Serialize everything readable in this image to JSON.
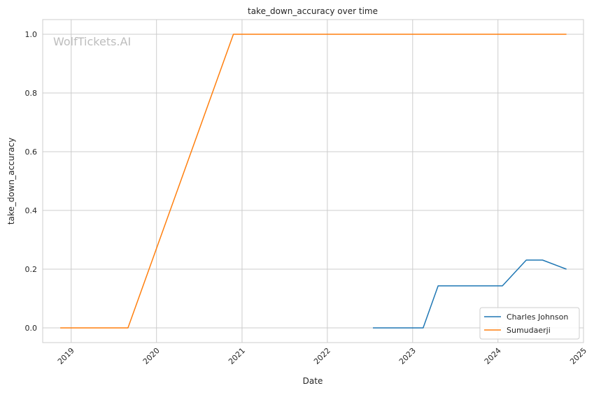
{
  "chart_data": {
    "type": "line",
    "title": "take_down_accuracy over time",
    "xlabel": "Date",
    "ylabel": "take_down_accuracy",
    "watermark": "WolfTickets.AI",
    "xlim": [
      "2018-09-01",
      "2025-01-01"
    ],
    "ylim": [
      -0.05,
      1.05
    ],
    "x_ticks": [
      "2019",
      "2020",
      "2021",
      "2022",
      "2023",
      "2024",
      "2025"
    ],
    "y_ticks": [
      "0.0",
      "0.2",
      "0.4",
      "0.6",
      "0.8",
      "1.0"
    ],
    "grid": true,
    "legend": "lower-right",
    "series": [
      {
        "name": "Charles Johnson",
        "color": "#1f77b4",
        "x": [
          "2022-07-15",
          "2023-02-15",
          "2023-04-20",
          "2024-01-20",
          "2024-05-01",
          "2024-07-10",
          "2024-10-20"
        ],
        "values": [
          0.0,
          0.0,
          0.143,
          0.143,
          0.231,
          0.231,
          0.2
        ]
      },
      {
        "name": "Sumudaerji",
        "color": "#ff7f0e",
        "x": [
          "2018-11-15",
          "2019-09-01",
          "2020-11-25",
          "2024-10-20"
        ],
        "values": [
          0.0,
          0.0,
          1.0,
          1.0
        ]
      }
    ]
  }
}
